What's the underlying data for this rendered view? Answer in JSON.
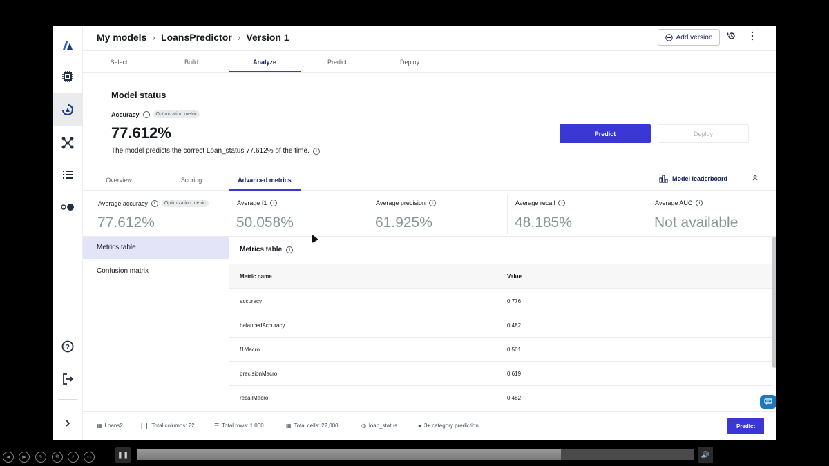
{
  "rail": {
    "icons": [
      "logo-icon",
      "chip-icon",
      "models-icon",
      "network-icon",
      "list-icon",
      "toggle-icon",
      "help-icon",
      "logout-icon",
      "expand-icon"
    ]
  },
  "breadcrumb": {
    "items": [
      "My models",
      "LoansPredictor",
      "Version 1"
    ]
  },
  "header": {
    "add_version_label": "Add version"
  },
  "tabs": [
    {
      "label": "Select"
    },
    {
      "label": "Build"
    },
    {
      "label": "Analyze"
    },
    {
      "label": "Predict"
    },
    {
      "label": "Deploy"
    }
  ],
  "model_status": {
    "title": "Model status",
    "accuracy_label": "Accuracy",
    "badge": "Optimization metric",
    "accuracy_value": "77.612%",
    "description": "The model predicts the correct Loan_status 77.612% of the time.",
    "predict_label": "Predict",
    "deploy_label": "Deploy"
  },
  "subtabs": [
    {
      "label": "Overview"
    },
    {
      "label": "Scoring"
    },
    {
      "label": "Advanced metrics"
    }
  ],
  "leaderboard_label": "Model leaderboard",
  "metrics": [
    {
      "label": "Average accuracy",
      "value": "77.612%",
      "badge": "Optimization metric"
    },
    {
      "label": "Average f1",
      "value": "50.058%"
    },
    {
      "label": "Average precision",
      "value": "61.925%"
    },
    {
      "label": "Average recall",
      "value": "48.185%"
    },
    {
      "label": "Average AUC",
      "value": "Not available"
    }
  ],
  "side_nav": [
    {
      "label": "Metrics table"
    },
    {
      "label": "Confusion matrix"
    }
  ],
  "metrics_table": {
    "title": "Metrics table",
    "columns": [
      "Metric name",
      "Value"
    ],
    "rows": [
      [
        "accuracy",
        "0.776"
      ],
      [
        "balancedAccuracy",
        "0.482"
      ],
      [
        "f1Macro",
        "0.501"
      ],
      [
        "precisionMacro",
        "0.619"
      ],
      [
        "recallMacro",
        "0.482"
      ]
    ]
  },
  "footer": {
    "dataset": "Loans2",
    "total_columns": "Total columns: 22",
    "total_rows": "Total rows: 1,000",
    "total_cells": "Total cells: 22,000",
    "target": "loan_status",
    "problem_type": "3+ category prediction",
    "predict_label": "Predict"
  },
  "player": {
    "progress": 0.76
  }
}
